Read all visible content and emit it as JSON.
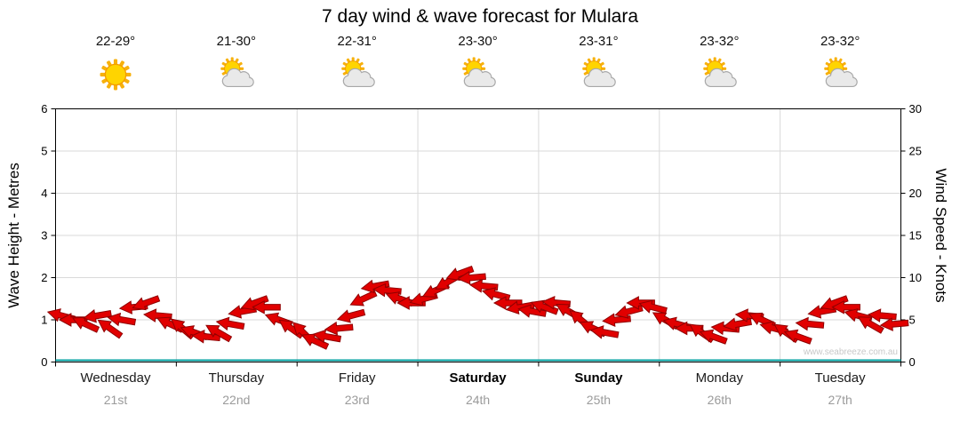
{
  "chart_data": {
    "type": "line",
    "title": "7 day wind & wave forecast for Mulara",
    "ylabel_left": "Wave Height - Metres",
    "ylabel_right": "Wind Speed - Knots",
    "ylim_left": [
      0,
      6
    ],
    "ylim_right": [
      0,
      30
    ],
    "yticks_left": [
      0,
      1,
      2,
      3,
      4,
      5,
      6
    ],
    "yticks_right": [
      0,
      5,
      10,
      15,
      20,
      25,
      30
    ],
    "grid": true,
    "legend": "none",
    "days": [
      {
        "label": "Wednesday",
        "date": "21st",
        "temp": "22-29°",
        "icon": "sunny",
        "weekend": false
      },
      {
        "label": "Thursday",
        "date": "22nd",
        "temp": "21-30°",
        "icon": "partly-cloudy",
        "weekend": false
      },
      {
        "label": "Friday",
        "date": "23rd",
        "temp": "22-31°",
        "icon": "partly-cloudy",
        "weekend": false
      },
      {
        "label": "Saturday",
        "date": "24th",
        "temp": "23-30°",
        "icon": "partly-cloudy",
        "weekend": true
      },
      {
        "label": "Sunday",
        "date": "25th",
        "temp": "23-31°",
        "icon": "partly-cloudy",
        "weekend": true
      },
      {
        "label": "Monday",
        "date": "26th",
        "temp": "23-32°",
        "icon": "partly-cloudy",
        "weekend": false
      },
      {
        "label": "Tuesday",
        "date": "27th",
        "temp": "23-32°",
        "icon": "partly-cloudy",
        "weekend": false
      }
    ],
    "wind_series": {
      "name": "Wind speed with direction arrows",
      "unit": "knots",
      "color": "#e10000",
      "outline_color": "#8f0000",
      "points_per_day": 10,
      "points": [
        [
          5.5,
          195
        ],
        [
          5.0,
          180
        ],
        [
          4.5,
          205
        ],
        [
          5.5,
          170
        ],
        [
          4.0,
          215
        ],
        [
          5.0,
          190
        ],
        [
          6.5,
          175
        ],
        [
          7.0,
          160
        ],
        [
          5.5,
          185
        ],
        [
          4.5,
          205
        ],
        [
          4.0,
          220
        ],
        [
          3.5,
          200
        ],
        [
          3.0,
          185
        ],
        [
          3.5,
          210
        ],
        [
          4.5,
          190
        ],
        [
          6.0,
          170
        ],
        [
          7.0,
          160
        ],
        [
          6.5,
          180
        ],
        [
          5.0,
          200
        ],
        [
          4.0,
          215
        ],
        [
          3.5,
          225
        ],
        [
          2.5,
          205
        ],
        [
          3.0,
          190
        ],
        [
          4.0,
          175
        ],
        [
          5.5,
          165
        ],
        [
          7.5,
          155
        ],
        [
          9.0,
          170
        ],
        [
          8.5,
          185
        ],
        [
          7.5,
          200
        ],
        [
          7.0,
          180
        ],
        [
          7.5,
          165
        ],
        [
          8.5,
          155
        ],
        [
          9.5,
          150
        ],
        [
          10.5,
          160
        ],
        [
          10.0,
          175
        ],
        [
          9.0,
          185
        ],
        [
          8.0,
          195
        ],
        [
          7.0,
          180
        ],
        [
          6.5,
          170
        ],
        [
          6.0,
          190
        ],
        [
          6.5,
          200
        ],
        [
          7.0,
          185
        ],
        [
          6.0,
          210
        ],
        [
          5.0,
          220
        ],
        [
          4.0,
          205
        ],
        [
          3.5,
          190
        ],
        [
          5.0,
          175
        ],
        [
          6.0,
          165
        ],
        [
          7.0,
          180
        ],
        [
          6.5,
          195
        ],
        [
          5.0,
          210
        ],
        [
          4.5,
          195
        ],
        [
          4.0,
          180
        ],
        [
          3.5,
          215
        ],
        [
          3.0,
          200
        ],
        [
          4.0,
          185
        ],
        [
          4.5,
          170
        ],
        [
          5.5,
          185
        ],
        [
          5.0,
          205
        ],
        [
          4.0,
          195
        ],
        [
          3.5,
          215
        ],
        [
          3.0,
          200
        ],
        [
          4.5,
          185
        ],
        [
          6.0,
          170
        ],
        [
          7.0,
          160
        ],
        [
          6.5,
          180
        ],
        [
          5.5,
          195
        ],
        [
          4.5,
          210
        ],
        [
          5.5,
          185
        ],
        [
          4.5,
          175
        ]
      ]
    },
    "swell_baseline": {
      "color": "#00a0a0",
      "value_metres": 0.05
    },
    "watermark": "www.seabreeze.com.au"
  }
}
